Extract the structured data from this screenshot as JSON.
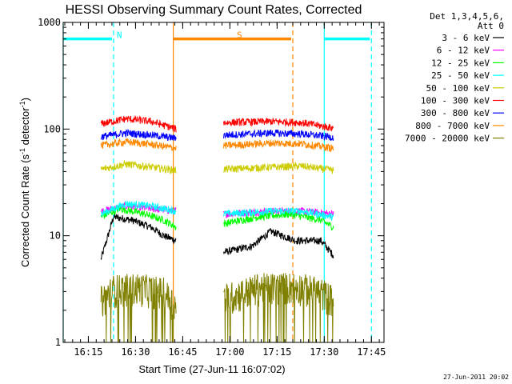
{
  "chart_data": {
    "type": "line",
    "title": "HESSI Observing Summary Count Rates, Corrected",
    "xlabel": "Start Time (27-Jun-11 16:07:02)",
    "ylabel_main": "Corrected Count Rate (s",
    "ylabel_sup1": "-1",
    "ylabel_mid": " detector",
    "ylabel_sup2": "-1",
    "ylabel_end": ")",
    "yscale": "log",
    "ylim": [
      1,
      1000
    ],
    "xlim": [
      "16:07:02",
      "17:49:00"
    ],
    "y_ticks": [
      {
        "value": 1,
        "label": "1"
      },
      {
        "value": 10,
        "label": "10"
      },
      {
        "value": 100,
        "label": "100"
      },
      {
        "value": 1000,
        "label": "1000"
      }
    ],
    "x_ticks": [
      {
        "minutes": 8,
        "label": "16:15"
      },
      {
        "minutes": 23,
        "label": "16:30"
      },
      {
        "minutes": 38,
        "label": "16:45"
      },
      {
        "minutes": 53,
        "label": "17:00"
      },
      {
        "minutes": 68,
        "label": "17:15"
      },
      {
        "minutes": 83,
        "label": "17:30"
      },
      {
        "minutes": 98,
        "label": "17:45"
      }
    ],
    "legend_title": [
      "Det 1,3,4,5,6,",
      "Att 0"
    ],
    "legend_position": "right",
    "intervals": [
      {
        "label": "N",
        "color": "#00ffff",
        "start": 0,
        "end": 16,
        "y": 700,
        "end_dashed": true
      },
      {
        "label": "S",
        "color": "#ff8800",
        "start": 35,
        "end": 73,
        "y": 700,
        "end_dashed": true
      },
      {
        "label": "",
        "color": "#00ffff",
        "start": 83,
        "end": 98,
        "y": 700,
        "end_dashed": true
      }
    ],
    "data_windows": [
      [
        12,
        36
      ],
      [
        51,
        86
      ]
    ],
    "series": [
      {
        "name": "3 - 6 keV",
        "color": "#000000",
        "values": [
          [
            12,
            6
          ],
          [
            16,
            15
          ],
          [
            22,
            14
          ],
          [
            28,
            12
          ],
          [
            32,
            10
          ],
          [
            36,
            9
          ],
          [
            51,
            7
          ],
          [
            60,
            8
          ],
          [
            66,
            11
          ],
          [
            74,
            9
          ],
          [
            82,
            9
          ],
          [
            86,
            6.5
          ]
        ]
      },
      {
        "name": "6 - 12 keV",
        "color": "#ff00ff",
        "values": [
          [
            12,
            17
          ],
          [
            20,
            19
          ],
          [
            28,
            18
          ],
          [
            36,
            17
          ],
          [
            51,
            16
          ],
          [
            66,
            17
          ],
          [
            76,
            17
          ],
          [
            86,
            16
          ]
        ]
      },
      {
        "name": "12 - 25 keV",
        "color": "#00ff00",
        "values": [
          [
            12,
            15
          ],
          [
            18,
            18
          ],
          [
            26,
            16
          ],
          [
            32,
            14
          ],
          [
            36,
            12
          ],
          [
            51,
            13
          ],
          [
            62,
            15
          ],
          [
            72,
            16
          ],
          [
            82,
            14
          ],
          [
            86,
            12
          ]
        ]
      },
      {
        "name": "25 - 50 keV",
        "color": "#00ffff",
        "values": [
          [
            12,
            16
          ],
          [
            20,
            20
          ],
          [
            28,
            19
          ],
          [
            36,
            17
          ],
          [
            51,
            16
          ],
          [
            66,
            17
          ],
          [
            76,
            17
          ],
          [
            86,
            15
          ]
        ]
      },
      {
        "name": "50 - 100 keV",
        "color": "#cccc00",
        "values": [
          [
            12,
            42
          ],
          [
            20,
            47
          ],
          [
            28,
            44
          ],
          [
            36,
            41
          ],
          [
            51,
            42
          ],
          [
            66,
            44
          ],
          [
            76,
            45
          ],
          [
            86,
            41
          ]
        ]
      },
      {
        "name": "100 - 300 keV",
        "color": "#ff0000",
        "values": [
          [
            12,
            112
          ],
          [
            20,
            125
          ],
          [
            28,
            118
          ],
          [
            36,
            100
          ],
          [
            51,
            115
          ],
          [
            66,
            118
          ],
          [
            76,
            115
          ],
          [
            86,
            102
          ]
        ]
      },
      {
        "name": "300 - 800 keV",
        "color": "#0000ff",
        "values": [
          [
            12,
            85
          ],
          [
            20,
            92
          ],
          [
            28,
            88
          ],
          [
            36,
            82
          ],
          [
            51,
            88
          ],
          [
            66,
            92
          ],
          [
            76,
            90
          ],
          [
            86,
            84
          ]
        ]
      },
      {
        "name": "800 - 7000 keV",
        "color": "#ff8800",
        "values": [
          [
            12,
            70
          ],
          [
            20,
            76
          ],
          [
            28,
            72
          ],
          [
            36,
            66
          ],
          [
            51,
            70
          ],
          [
            66,
            74
          ],
          [
            76,
            73
          ],
          [
            86,
            66
          ]
        ]
      },
      {
        "name": "7000 - 20000 keV",
        "color": "#808000",
        "values": [
          [
            12,
            2.5
          ],
          [
            16,
            3.2
          ],
          [
            24,
            3.3
          ],
          [
            32,
            3.0
          ],
          [
            36,
            2.2
          ],
          [
            51,
            2.6
          ],
          [
            62,
            3.3
          ],
          [
            74,
            3.4
          ],
          [
            82,
            3.0
          ],
          [
            86,
            2.5
          ]
        ]
      }
    ]
  },
  "footer": {
    "timestamp": "27-Jun-2011 20:02"
  }
}
